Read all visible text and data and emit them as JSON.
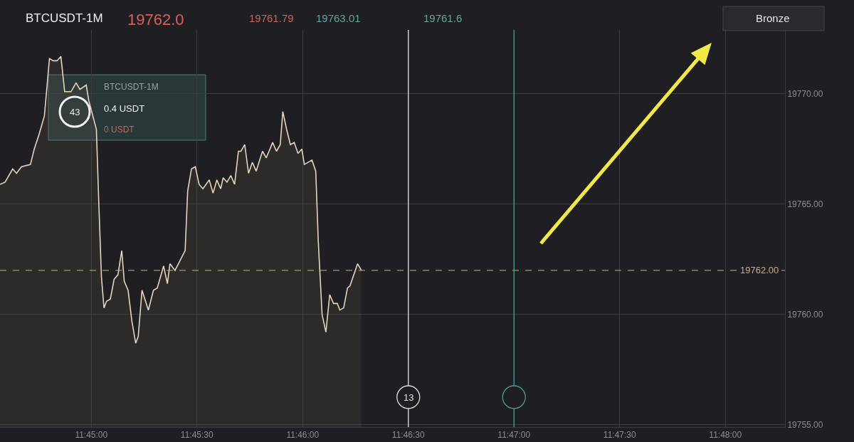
{
  "chart_data": {
    "type": "area",
    "title": "BTCUSDT-1M",
    "subtitle": "19762.0",
    "annotations": [
      "19761.79",
      "19763.01",
      "19761.6",
      "BTCUSDT-1M",
      "43",
      "0.4 USDT",
      "0 USDT",
      "Bronze",
      "13"
    ],
    "x": [
      11.7428,
      11.7432,
      11.7438,
      11.7441,
      11.7445,
      11.7452,
      11.7455,
      11.7459,
      11.7463,
      11.7467,
      11.747,
      11.7473,
      11.7476,
      11.7479,
      11.7484,
      11.7488,
      11.7491,
      11.7496,
      11.7498,
      11.7504,
      11.7506,
      11.7508,
      11.751,
      11.7512,
      11.7515,
      11.7518,
      11.7521,
      11.7524,
      11.7526,
      11.7529,
      11.7532,
      11.7535,
      11.7537,
      11.754,
      11.7545,
      11.7549,
      11.7552,
      11.7557,
      11.756,
      11.7562,
      11.7566,
      11.7574,
      11.7576,
      11.7579,
      11.7582,
      11.7585,
      11.7588,
      11.7593,
      11.7596,
      11.7599,
      11.7602,
      11.7604,
      11.7607,
      11.761,
      11.7613,
      11.7616,
      11.7618,
      11.7621,
      11.7624,
      11.7627,
      11.763,
      11.7635,
      11.7638,
      11.7643,
      11.7646,
      11.7649,
      11.7651,
      11.7654,
      11.7657,
      11.766,
      11.7663,
      11.7666,
      11.7668,
      11.7674,
      11.7677,
      11.7679,
      11.7682,
      11.7685,
      11.7688,
      11.7691,
      11.7694,
      11.7696,
      11.7699,
      11.7702,
      11.7704,
      11.771,
      11.7713
    ],
    "series": [
      {
        "color": "#e6d5bc",
        "values": [
          19765.9,
          19766.0,
          19766.6,
          19766.4,
          19766.7,
          19766.8,
          19767.5,
          19768.2,
          19769.0,
          19771.6,
          19771.5,
          19771.5,
          19771.7,
          19770.1,
          19770.1,
          19770.5,
          19770.2,
          19770.4,
          19769.7,
          19768.4,
          19764.9,
          19761.7,
          19760.3,
          19760.6,
          19760.7,
          19761.6,
          19761.8,
          19762.9,
          19761.5,
          19761.1,
          19759.7,
          19758.7,
          19759.0,
          19761.1,
          19760.2,
          19761.1,
          19761.2,
          19762.2,
          19761.4,
          19762.3,
          19762.0,
          19762.9,
          19765.6,
          19766.6,
          19766.7,
          19765.9,
          19765.7,
          19766.1,
          19765.5,
          19766.1,
          19765.7,
          19766.2,
          19766.0,
          19766.3,
          19765.9,
          19767.4,
          19767.4,
          19767.7,
          19766.4,
          19766.9,
          19766.5,
          19767.4,
          19767.1,
          19767.8,
          19767.4,
          19767.7,
          19769.2,
          19768.4,
          19767.7,
          19767.8,
          19767.3,
          19767.5,
          19766.8,
          19767.0,
          19766.5,
          19763.3,
          19760.0,
          19759.2,
          19760.9,
          19760.5,
          19760.5,
          19760.2,
          19760.3,
          19761.2,
          19761.3,
          19762.3,
          19762.0
        ]
      }
    ],
    "xlim": [
      11.7428,
      11.8047
    ],
    "xticks": [
      {
        "value": 11.75,
        "label": "11:45:00"
      },
      {
        "value": 11.758333,
        "label": "11:45:30"
      },
      {
        "value": 11.766667,
        "label": "11:46:00"
      },
      {
        "value": 11.775,
        "label": "11:46:30"
      },
      {
        "value": 11.783333,
        "label": "11:47:00"
      },
      {
        "value": 11.791667,
        "label": "11:47:30"
      },
      {
        "value": 11.8,
        "label": "11:48:00"
      }
    ],
    "ylim": [
      19754.9,
      19772.9
    ],
    "yticks": [
      {
        "value": 19755,
        "label": "19755.00"
      },
      {
        "value": 19760,
        "label": "19760.00"
      },
      {
        "value": 19765,
        "label": "19765.00"
      },
      {
        "value": 19770,
        "label": "19770.00"
      }
    ],
    "ref_lines": [
      {
        "axis": "y",
        "value": 19762,
        "label": "19762.00",
        "color": "#c8ad86",
        "line_style": "dashed"
      },
      {
        "axis": "x",
        "value": 11.775,
        "color": "#e0e0e0"
      },
      {
        "axis": "x",
        "value": 11.783333,
        "color": "#4c9c95"
      }
    ],
    "grid": true,
    "marker": "none",
    "line_style": "solid"
  }
}
